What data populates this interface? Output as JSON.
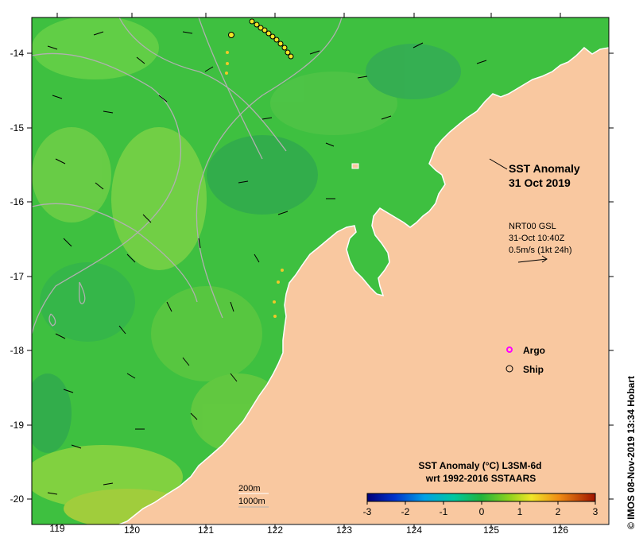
{
  "map": {
    "lon_ticks": [
      "119",
      "120",
      "121",
      "122",
      "123",
      "124",
      "125",
      "126"
    ],
    "lat_ticks": [
      "-14",
      "-15",
      "-16",
      "-17",
      "-18",
      "-19",
      "-20"
    ]
  },
  "title": {
    "line1": "SST Anomaly",
    "line2": "31 Oct 2019"
  },
  "info": {
    "line1": "NRT00 GSL",
    "line2": "31-Oct 10:40Z",
    "line3": "0.5m/s (1kt 24h)"
  },
  "legend": {
    "argo_label": "Argo",
    "ship_label": "Ship",
    "argo_color": "#ff00ff",
    "ship_color": "#000000"
  },
  "depth": {
    "line1": "200m",
    "line2": "1000m"
  },
  "colorbar": {
    "title1": "SST Anomaly (°C) L3SM-6d",
    "title2": "wrt 1992-2016 SSTAARS",
    "ticks": [
      "-3",
      "-2",
      "-1",
      "0",
      "1",
      "2",
      "3"
    ]
  },
  "credit": "© IMOS 08-Nov-2019 13:34 Hobart",
  "colors": {
    "land": "#f9c8a0",
    "ocean": "#3ec040",
    "contour": "#b0b0b0"
  }
}
